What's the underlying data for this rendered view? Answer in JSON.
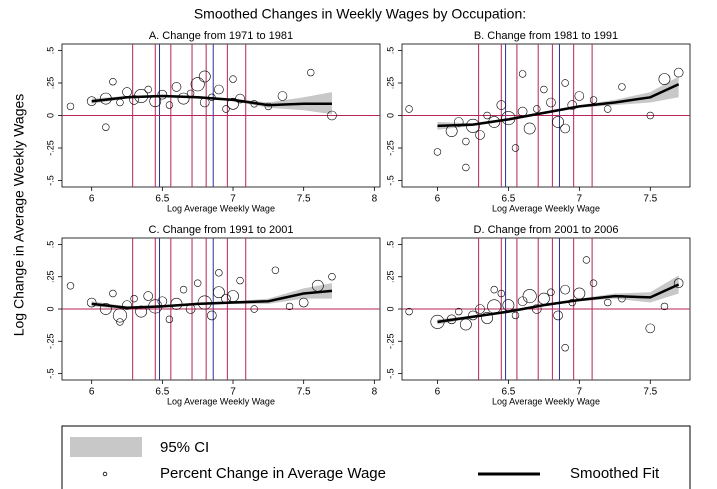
{
  "title": "Smoothed Changes in Weekly Wages by Occupation:",
  "ylabel": "Log Change in Average Weekly Wages",
  "legend": {
    "ci": "95% CI",
    "points": "Percent Change in Average Wage",
    "fit": "Smoothed Fit"
  },
  "chart_data": [
    {
      "type": "scatter",
      "title": "A. Change from 1971 to 1981",
      "xlabel": "Log Average Weekly Wage",
      "xlim": [
        5.79,
        8.04
      ],
      "xticks": [
        6,
        6.5,
        7,
        7.5,
        8
      ],
      "ylim": [
        -0.55,
        0.55
      ],
      "yticks": [
        {
          "value": -0.5,
          "label": "-.5"
        },
        {
          "value": -0.25,
          "label": "-.25"
        },
        0,
        {
          "value": 0.25,
          "label": ".25"
        },
        {
          "value": 0.5,
          "label": ".5"
        }
      ],
      "hline": 0,
      "red_lines": [
        6.29,
        6.45,
        6.56,
        6.71,
        6.81,
        6.96,
        7.09
      ],
      "blue_lines": [
        6.48,
        6.86
      ],
      "points": {
        "x": [
          5.85,
          6.0,
          6.1,
          6.15,
          6.2,
          6.25,
          6.3,
          6.35,
          6.4,
          6.45,
          6.5,
          6.55,
          6.6,
          6.65,
          6.7,
          6.75,
          6.8,
          6.85,
          6.9,
          6.95,
          7.0,
          7.05,
          7.15,
          7.25,
          7.35,
          7.55,
          7.7,
          6.1,
          6.8,
          7.0
        ],
        "y": [
          0.07,
          0.11,
          0.13,
          0.26,
          0.1,
          0.18,
          0.12,
          0.15,
          0.2,
          0.11,
          0.16,
          0.08,
          0.22,
          0.13,
          0.17,
          0.24,
          0.1,
          0.14,
          0.2,
          0.05,
          0.28,
          0.13,
          0.09,
          0.07,
          0.15,
          0.33,
          0.0,
          -0.09,
          0.3,
          0.09
        ],
        "size": [
          2,
          3,
          4,
          2,
          2,
          3,
          3,
          5,
          2,
          4,
          3,
          2,
          3,
          4,
          2,
          5,
          3,
          2,
          3,
          2,
          2,
          3,
          2,
          2,
          3,
          2,
          3,
          2,
          4,
          4
        ]
      },
      "fit": {
        "x": [
          6.0,
          6.25,
          6.5,
          6.75,
          7.0,
          7.25,
          7.5,
          7.7
        ],
        "y": [
          0.11,
          0.14,
          0.15,
          0.14,
          0.12,
          0.08,
          0.09,
          0.09
        ],
        "lower": [
          0.09,
          0.13,
          0.14,
          0.13,
          0.11,
          0.06,
          0.04,
          0.01
        ],
        "upper": [
          0.13,
          0.15,
          0.16,
          0.15,
          0.13,
          0.1,
          0.14,
          0.18
        ]
      }
    },
    {
      "type": "scatter",
      "title": "B. Change from 1981 to 1991",
      "xlabel": "Log Average Weekly Wage",
      "xlim": [
        5.75,
        7.78
      ],
      "xticks": [
        6,
        6.5,
        7,
        7.5
      ],
      "ylim": [
        -0.55,
        0.55
      ],
      "yticks": [
        {
          "value": -0.5,
          "label": "-.5"
        },
        {
          "value": -0.25,
          "label": "-.25"
        },
        0,
        {
          "value": 0.25,
          "label": ".25"
        },
        {
          "value": 0.5,
          "label": ".5"
        }
      ],
      "hline": 0,
      "red_lines": [
        6.29,
        6.45,
        6.56,
        6.71,
        6.81,
        6.96,
        7.09
      ],
      "blue_lines": [
        6.48,
        6.86
      ],
      "points": {
        "x": [
          5.8,
          6.0,
          6.1,
          6.15,
          6.2,
          6.25,
          6.3,
          6.35,
          6.4,
          6.45,
          6.5,
          6.55,
          6.6,
          6.65,
          6.7,
          6.75,
          6.8,
          6.85,
          6.9,
          6.95,
          7.0,
          7.1,
          7.2,
          7.3,
          7.5,
          7.6,
          7.7,
          6.2,
          6.6,
          6.9
        ],
        "y": [
          0.05,
          -0.28,
          -0.12,
          -0.05,
          -0.2,
          -0.08,
          -0.15,
          0.0,
          -0.05,
          0.08,
          -0.02,
          -0.25,
          0.03,
          -0.1,
          0.05,
          0.2,
          0.1,
          -0.05,
          0.25,
          0.08,
          0.15,
          0.12,
          0.05,
          0.22,
          0.0,
          0.28,
          0.33,
          -0.4,
          0.32,
          -0.1
        ],
        "size": [
          2,
          2,
          4,
          3,
          2,
          5,
          3,
          2,
          4,
          3,
          5,
          2,
          3,
          4,
          2,
          2,
          3,
          4,
          2,
          3,
          3,
          2,
          2,
          2,
          2,
          4,
          3,
          2,
          2,
          3
        ]
      },
      "fit": {
        "x": [
          6.0,
          6.25,
          6.5,
          6.75,
          7.0,
          7.25,
          7.5,
          7.7
        ],
        "y": [
          -0.08,
          -0.07,
          -0.03,
          0.02,
          0.07,
          0.1,
          0.14,
          0.24
        ],
        "lower": [
          -0.11,
          -0.08,
          -0.04,
          0.01,
          0.06,
          0.08,
          0.1,
          0.14
        ],
        "upper": [
          -0.05,
          -0.06,
          -0.02,
          0.03,
          0.08,
          0.12,
          0.18,
          0.3
        ]
      }
    },
    {
      "type": "scatter",
      "title": "C. Change from 1991 to 2001",
      "xlabel": "Log Average Weekly Wage",
      "xlim": [
        5.79,
        8.04
      ],
      "xticks": [
        6,
        6.5,
        7,
        7.5,
        8
      ],
      "ylim": [
        -0.55,
        0.55
      ],
      "yticks": [
        {
          "value": -0.5,
          "label": "-.5"
        },
        {
          "value": -0.25,
          "label": "-.25"
        },
        0,
        {
          "value": 0.25,
          "label": ".25"
        },
        {
          "value": 0.5,
          "label": ".5"
        }
      ],
      "hline": 0,
      "red_lines": [
        6.29,
        6.45,
        6.56,
        6.71,
        6.81,
        6.96,
        7.09
      ],
      "blue_lines": [
        6.48,
        6.86
      ],
      "points": {
        "x": [
          5.85,
          6.0,
          6.1,
          6.15,
          6.2,
          6.25,
          6.3,
          6.35,
          6.4,
          6.45,
          6.5,
          6.55,
          6.6,
          6.65,
          6.7,
          6.75,
          6.8,
          6.85,
          6.9,
          6.95,
          7.0,
          7.05,
          7.15,
          7.3,
          7.5,
          7.6,
          7.7,
          6.2,
          6.9,
          7.4
        ],
        "y": [
          0.18,
          0.05,
          0.0,
          0.12,
          -0.05,
          0.03,
          0.08,
          -0.02,
          0.1,
          0.02,
          0.06,
          -0.08,
          0.04,
          0.15,
          0.0,
          0.2,
          0.05,
          -0.05,
          0.13,
          0.08,
          0.1,
          0.22,
          0.0,
          0.3,
          0.05,
          0.18,
          0.25,
          -0.1,
          0.28,
          0.02
        ],
        "size": [
          2,
          3,
          4,
          2,
          5,
          3,
          2,
          4,
          3,
          5,
          3,
          2,
          4,
          2,
          3,
          2,
          5,
          3,
          4,
          3,
          4,
          2,
          2,
          2,
          3,
          4,
          2,
          2,
          2,
          2
        ]
      },
      "fit": {
        "x": [
          6.0,
          6.25,
          6.5,
          6.75,
          7.0,
          7.25,
          7.5,
          7.7
        ],
        "y": [
          0.04,
          0.01,
          0.02,
          0.04,
          0.05,
          0.06,
          0.12,
          0.14
        ],
        "lower": [
          0.02,
          0.0,
          0.01,
          0.03,
          0.04,
          0.04,
          0.08,
          0.08
        ],
        "upper": [
          0.06,
          0.02,
          0.03,
          0.05,
          0.06,
          0.08,
          0.16,
          0.2
        ]
      }
    },
    {
      "type": "scatter",
      "title": "D. Change from 2001 to 2006",
      "xlabel": "Log Average Weekly Wage",
      "xlim": [
        5.75,
        7.78
      ],
      "xticks": [
        6,
        6.5,
        7,
        7.5
      ],
      "ylim": [
        -0.55,
        0.55
      ],
      "yticks": [
        {
          "value": -0.5,
          "label": "-.5"
        },
        {
          "value": -0.25,
          "label": "-.25"
        },
        0,
        {
          "value": 0.25,
          "label": ".25"
        },
        {
          "value": 0.5,
          "label": ".5"
        }
      ],
      "hline": 0,
      "red_lines": [
        6.29,
        6.45,
        6.56,
        6.71,
        6.81,
        6.96,
        7.09
      ],
      "blue_lines": [
        6.48,
        6.86
      ],
      "points": {
        "x": [
          5.8,
          6.0,
          6.1,
          6.15,
          6.2,
          6.25,
          6.3,
          6.35,
          6.4,
          6.45,
          6.5,
          6.55,
          6.6,
          6.65,
          6.7,
          6.75,
          6.8,
          6.85,
          6.9,
          6.95,
          7.0,
          7.1,
          7.2,
          7.3,
          7.5,
          7.6,
          7.7,
          6.4,
          6.9,
          7.05
        ],
        "y": [
          -0.02,
          -0.1,
          -0.08,
          -0.02,
          -0.12,
          -0.05,
          0.0,
          -0.07,
          0.02,
          0.12,
          0.03,
          -0.05,
          0.06,
          0.1,
          0.0,
          0.08,
          0.13,
          -0.05,
          0.15,
          0.05,
          0.12,
          0.2,
          0.05,
          0.08,
          -0.15,
          0.02,
          0.2,
          0.15,
          -0.3,
          0.38
        ],
        "size": [
          2,
          5,
          3,
          2,
          4,
          3,
          3,
          4,
          5,
          2,
          4,
          2,
          3,
          5,
          3,
          4,
          2,
          3,
          3,
          2,
          4,
          2,
          2,
          2,
          3,
          2,
          3,
          2,
          2,
          2
        ]
      },
      "fit": {
        "x": [
          6.0,
          6.25,
          6.5,
          6.75,
          7.0,
          7.25,
          7.5,
          7.7
        ],
        "y": [
          -0.1,
          -0.06,
          -0.02,
          0.03,
          0.07,
          0.1,
          0.09,
          0.19
        ],
        "lower": [
          -0.12,
          -0.07,
          -0.03,
          0.02,
          0.06,
          0.08,
          0.05,
          0.12
        ],
        "upper": [
          -0.08,
          -0.05,
          -0.01,
          0.04,
          0.08,
          0.12,
          0.13,
          0.26
        ]
      }
    }
  ]
}
